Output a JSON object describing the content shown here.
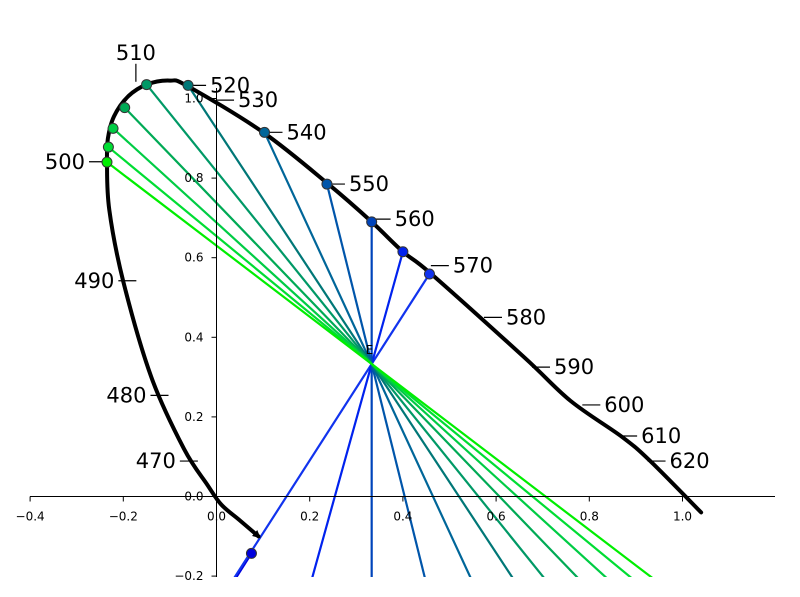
{
  "chart_data": {
    "type": "line",
    "title": "",
    "xlabel": "",
    "ylabel": "",
    "xlim": [
      -0.4,
      1.2
    ],
    "ylim": [
      -0.2,
      1.2
    ],
    "x_ticks": [
      {
        "value": -0.4,
        "label": "−0.4"
      },
      {
        "value": -0.2,
        "label": "−0.2"
      },
      {
        "value": 0.0,
        "label": "0.0"
      },
      {
        "value": 0.2,
        "label": "0.2"
      },
      {
        "value": 0.4,
        "label": "0.4"
      },
      {
        "value": 0.6,
        "label": "0.6"
      },
      {
        "value": 0.8,
        "label": "0.8"
      },
      {
        "value": 1.0,
        "label": "1.0"
      }
    ],
    "y_ticks": [
      {
        "value": -0.2,
        "label": "−0.2"
      },
      {
        "value": 0.0,
        "label": "0.0"
      },
      {
        "value": 0.2,
        "label": "0.2"
      },
      {
        "value": 0.4,
        "label": "0.4"
      },
      {
        "value": 0.6,
        "label": "0.6"
      },
      {
        "value": 0.8,
        "label": "0.8"
      },
      {
        "value": 1.0,
        "label": "1.0"
      }
    ],
    "white_point": {
      "x": 0.333,
      "y": 0.333,
      "label": "E"
    },
    "locus": {
      "color": "#000000",
      "points": [
        [
          1.04,
          -0.04
        ],
        [
          0.93,
          0.09
        ],
        [
          0.87,
          0.15
        ],
        [
          0.76,
          0.24
        ],
        [
          0.66,
          0.35
        ],
        [
          0.46,
          0.56
        ],
        [
          0.4,
          0.615
        ],
        [
          0.333,
          0.69
        ],
        [
          0.24,
          0.785
        ],
        [
          0.1,
          0.915
        ],
        [
          -0.06,
          1.03
        ],
        [
          -0.1,
          1.045
        ],
        [
          -0.15,
          1.035
        ],
        [
          -0.19,
          1.005
        ],
        [
          -0.22,
          0.955
        ],
        [
          -0.233,
          0.9
        ],
        [
          -0.235,
          0.84
        ],
        [
          -0.23,
          0.72
        ],
        [
          -0.2,
          0.54
        ],
        [
          -0.14,
          0.3
        ],
        [
          -0.07,
          0.12
        ],
        [
          -0.02,
          0.03
        ],
        [
          0.01,
          -0.02
        ],
        [
          0.05,
          -0.06
        ],
        [
          0.09,
          -0.1
        ]
      ]
    },
    "wavelength_labels": [
      {
        "label": "470",
        "x": -0.04,
        "y": 0.089,
        "side": "left"
      },
      {
        "label": "480",
        "x": -0.103,
        "y": 0.254,
        "side": "left"
      },
      {
        "label": "490",
        "x": -0.172,
        "y": 0.542,
        "side": "left"
      },
      {
        "label": "500",
        "x": -0.235,
        "y": 0.841,
        "side": "left"
      },
      {
        "label": "510",
        "x": -0.173,
        "y": 1.042,
        "side": "up"
      },
      {
        "label": "520",
        "x": -0.061,
        "y": 1.033,
        "side": "right"
      },
      {
        "label": "530",
        "x": -0.001,
        "y": 0.996,
        "side": "right"
      },
      {
        "label": "540",
        "x": 0.103,
        "y": 0.915,
        "side": "right"
      },
      {
        "label": "550",
        "x": 0.237,
        "y": 0.785,
        "side": "right"
      },
      {
        "label": "560",
        "x": 0.335,
        "y": 0.697,
        "side": "right"
      },
      {
        "label": "570",
        "x": 0.46,
        "y": 0.58,
        "side": "right"
      },
      {
        "label": "580",
        "x": 0.574,
        "y": 0.45,
        "side": "right"
      },
      {
        "label": "590",
        "x": 0.677,
        "y": 0.325,
        "side": "right"
      },
      {
        "label": "600",
        "x": 0.785,
        "y": 0.23,
        "side": "right"
      },
      {
        "label": "610",
        "x": 0.864,
        "y": 0.152,
        "side": "right"
      },
      {
        "label": "620",
        "x": 0.925,
        "y": 0.089,
        "side": "right"
      }
    ],
    "rays": [
      {
        "x": 0.075,
        "y": -0.143,
        "color": "#0000dd"
      },
      {
        "x": 0.457,
        "y": 0.559,
        "color": "#1133ee"
      },
      {
        "x": 0.4,
        "y": 0.615,
        "color": "#0022ee"
      },
      {
        "x": 0.333,
        "y": 0.69,
        "color": "#0044bb"
      },
      {
        "x": 0.237,
        "y": 0.785,
        "color": "#0055aa"
      },
      {
        "x": 0.103,
        "y": 0.915,
        "color": "#006699"
      },
      {
        "x": -0.061,
        "y": 1.033,
        "color": "#007777"
      },
      {
        "x": -0.15,
        "y": 1.035,
        "color": "#009966"
      },
      {
        "x": -0.197,
        "y": 0.977,
        "color": "#00aa55"
      },
      {
        "x": -0.222,
        "y": 0.925,
        "color": "#00cc44"
      },
      {
        "x": -0.232,
        "y": 0.878,
        "color": "#00dd33"
      },
      {
        "x": -0.235,
        "y": 0.84,
        "color": "#00ee00"
      }
    ]
  }
}
